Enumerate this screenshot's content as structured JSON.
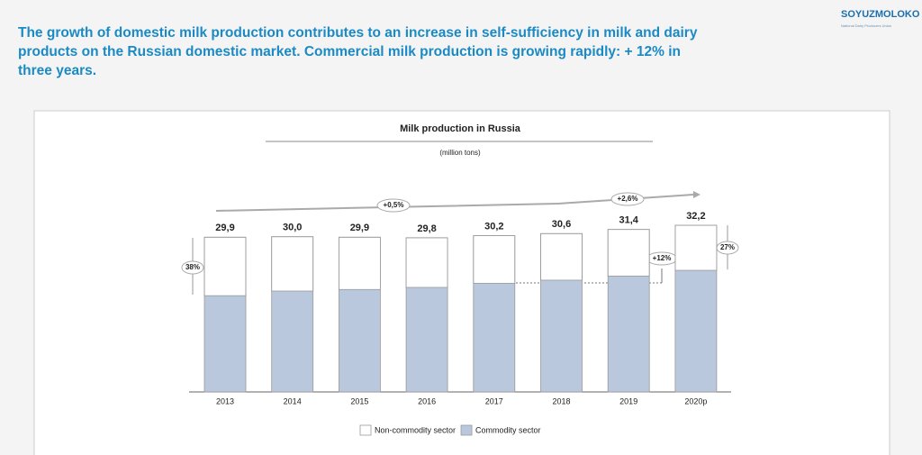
{
  "header": {
    "title": "The growth of domestic milk production contributes to an increase in self-sufficiency in milk and dairy products on the Russian domestic market. Commercial milk production is growing rapidly: + 12% in three years.",
    "logo": "SOYUZMOLOKO",
    "logo_subtitle": "National Dairy Producers Union"
  },
  "chart_data": {
    "type": "stacked-bar",
    "title": "Milk production in Russia",
    "subtitle": "(million tons)",
    "categories": [
      "2013",
      "2014",
      "2015",
      "2016",
      "2017",
      "2018",
      "2019",
      "2020p"
    ],
    "series": [
      {
        "name": "Commodity sector",
        "color": "#b9c8dc",
        "values": [
          18.6,
          19.5,
          19.8,
          20.2,
          21.0,
          21.6,
          22.4,
          23.5
        ]
      },
      {
        "name": "Non-commodity sector",
        "color": "#ffffff",
        "values": [
          11.3,
          10.5,
          10.1,
          9.6,
          9.2,
          9.0,
          9.0,
          8.7
        ]
      }
    ],
    "totals": {
      "values": [
        29.9,
        30.0,
        29.9,
        29.8,
        30.2,
        30.6,
        31.4,
        32.2
      ],
      "value_labels": [
        "29,9",
        "30,0",
        "29,9",
        "29,8",
        "30,2",
        "30,6",
        "31,4",
        "32,2"
      ]
    },
    "ylim": [
      0,
      35
    ],
    "annotations": [
      "+0,5%",
      "+2,6%",
      "+12%",
      "38%",
      "27%"
    ]
  }
}
